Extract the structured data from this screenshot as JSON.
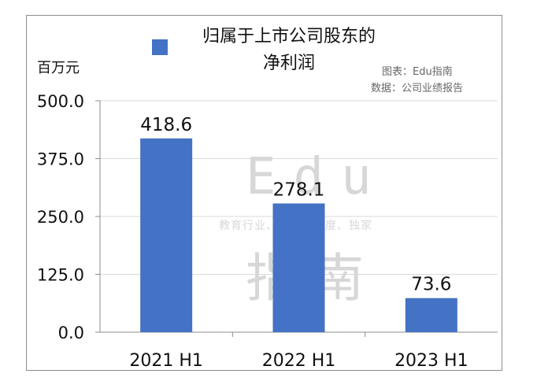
{
  "chart_data": {
    "type": "bar",
    "title": "归属于上市公司股东的净利润",
    "legend": [
      "归属于上市公司股东的",
      "净利润"
    ],
    "ylabel": "百万元",
    "source_lines": [
      "图表：Edu指南",
      "数据：公司业绩报告"
    ],
    "categories": [
      "2021 H1",
      "2022 H1",
      "2023 H1"
    ],
    "series": [
      {
        "name": "归属于上市公司股东的净利润",
        "values": [
          418.6,
          278.1,
          73.6
        ]
      }
    ],
    "data_labels": [
      "418.6",
      "278.1",
      "73.6"
    ],
    "yticks": [
      "500.0",
      "375.0",
      "250.0",
      "125.0",
      "0.0"
    ],
    "ytick_values": [
      500,
      375,
      250,
      125,
      0
    ],
    "ylim": [
      0,
      500
    ],
    "grid": true,
    "bar_color": "#4472c4",
    "watermark": {
      "main": "Edu",
      "sub": "教育行业、前沿、深度、独家",
      "big": "指南"
    }
  }
}
